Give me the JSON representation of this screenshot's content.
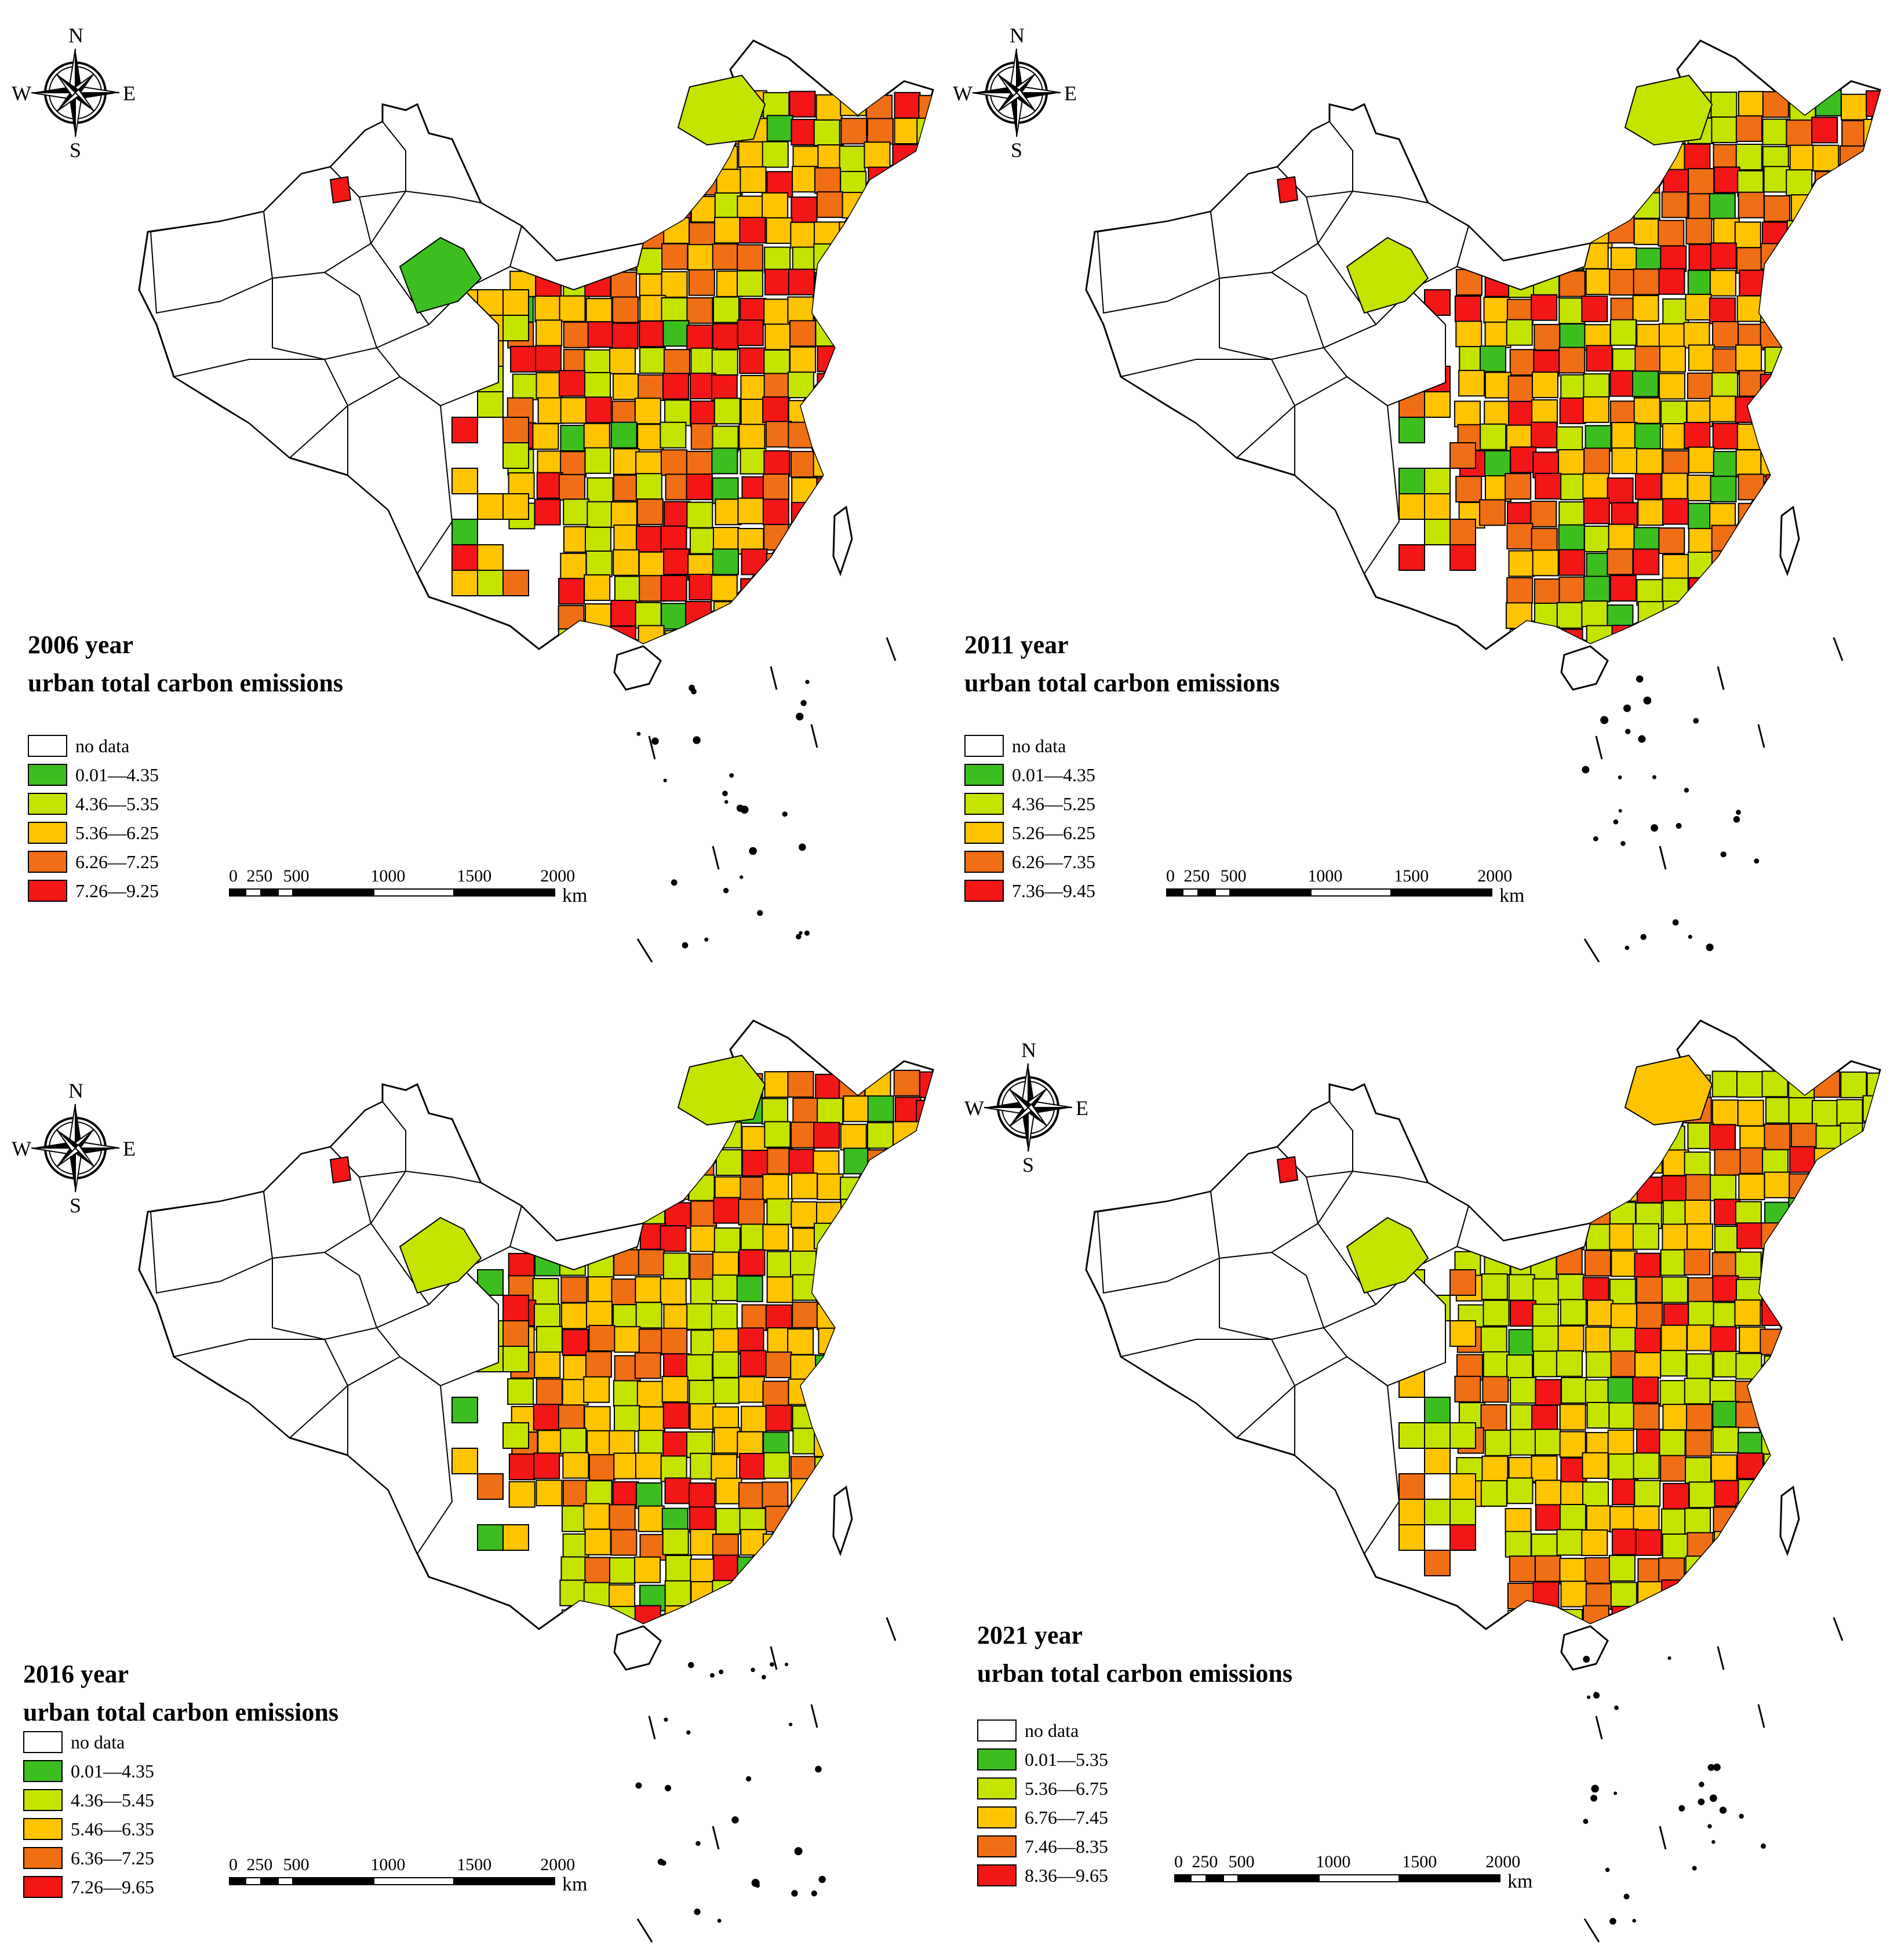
{
  "compass": {
    "n": "N",
    "s": "S",
    "w": "W",
    "e": "E"
  },
  "scale": {
    "ticks": [
      "0",
      "250",
      "500",
      "1000",
      "1500",
      "2000"
    ],
    "unit": "km"
  },
  "colors": {
    "no_data": "#ffffff",
    "class1": "#3cbf1e",
    "class2": "#c4e400",
    "class3": "#ffc400",
    "class4": "#f06e14",
    "class5": "#f21616",
    "outline": "#000000"
  },
  "panels": [
    {
      "id": "p2006",
      "year_line": "2006 year",
      "subtitle": "urban total carbon emissions",
      "legend": [
        "no data",
        "0.01—4.35",
        "4.36—5.35",
        "5.36—6.25",
        "6.26—7.25",
        "7.26—9.25"
      ]
    },
    {
      "id": "p2011",
      "year_line": "2011 year",
      "subtitle": "urban total carbon emissions",
      "legend": [
        "no data",
        "0.01—4.35",
        "4.36—5.25",
        "5.26—6.25",
        "6.26—7.35",
        "7.36—9.45"
      ]
    },
    {
      "id": "p2016",
      "year_line": "2016 year",
      "subtitle": "urban total carbon emissions",
      "legend": [
        "no data",
        "0.01—4.35",
        "4.36—5.45",
        "5.46—6.35",
        "6.36—7.25",
        "7.26—9.65"
      ]
    },
    {
      "id": "p2021",
      "year_line": "2021 year",
      "subtitle": "urban total carbon emissions",
      "legend": [
        "no data",
        "0.01—5.35",
        "5.36—6.75",
        "6.76—7.45",
        "7.46—8.35",
        "8.36—9.65"
      ]
    }
  ]
}
